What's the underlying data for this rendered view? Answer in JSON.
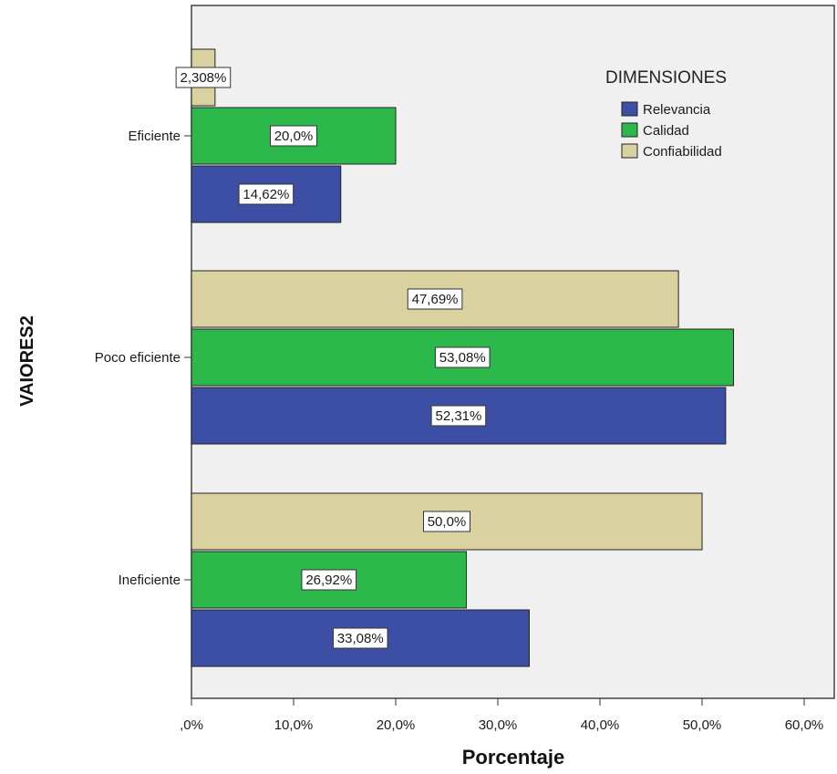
{
  "chart_data": {
    "type": "bar",
    "orientation": "horizontal",
    "xlabel": "Porcentaje",
    "ylabel": "VAIORES2",
    "xlim": [
      0,
      60
    ],
    "x_ticks": [
      0,
      10,
      20,
      30,
      40,
      50,
      60
    ],
    "x_tick_labels": [
      ",0%",
      "10,0%",
      "20,0%",
      "30,0%",
      "40,0%",
      "50,0%",
      "60,0%"
    ],
    "categories": [
      "Eficiente",
      "Poco eficiente",
      "Ineficiente"
    ],
    "legend": {
      "title": "DIMENSIONES",
      "position": "top-right"
    },
    "grid": false,
    "series": [
      {
        "name": "Relevancia",
        "color": "#3d4ea5",
        "values": [
          14.62,
          52.31,
          33.08
        ],
        "labels": [
          "14,62%",
          "52,31%",
          "33,08%"
        ]
      },
      {
        "name": "Calidad",
        "color": "#2db84c",
        "values": [
          20.0,
          53.08,
          26.92
        ],
        "labels": [
          "20,0%",
          "53,08%",
          "26,92%"
        ]
      },
      {
        "name": "Confiabilidad",
        "color": "#d9d2a0",
        "values": [
          2.308,
          47.69,
          50.0
        ],
        "labels": [
          "2,308%",
          "47,69%",
          "50,0%"
        ]
      }
    ]
  }
}
